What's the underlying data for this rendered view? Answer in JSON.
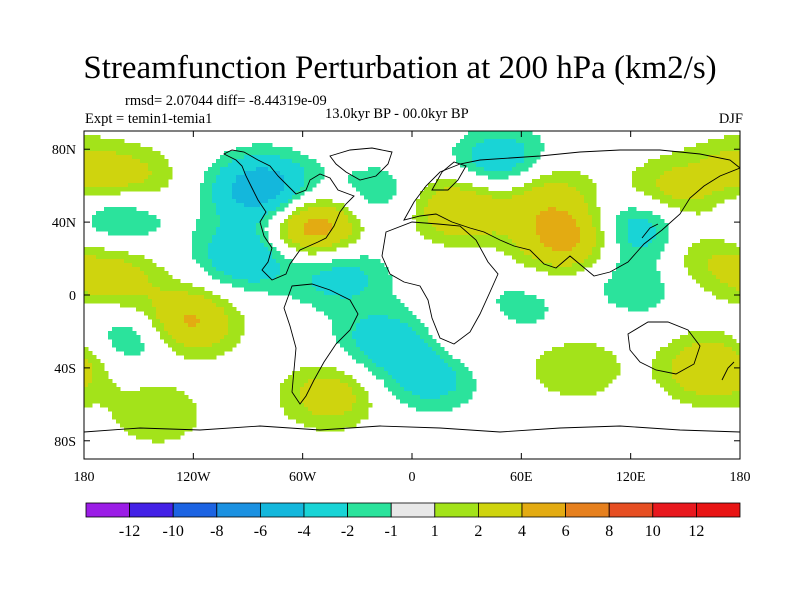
{
  "chart_data": {
    "type": "heatmap",
    "title": "Streamfunction Perturbation at 200 hPa (km2/s)",
    "stats_text": "rmsd= 2.07044 diff= -8.44319e-09",
    "left_label": "Expt = temin1-temia1",
    "center_label": "13.0kyr BP - 00.0kyr BP",
    "right_label": "DJF",
    "xticks": [
      "180",
      "120W",
      "60W",
      "0",
      "60E",
      "120E",
      "180"
    ],
    "yticks": [
      "80N",
      "40N",
      "0",
      "40S",
      "80S"
    ],
    "lon_range": [
      -180,
      180
    ],
    "lat_range": [
      -90,
      90
    ],
    "colorbar": {
      "labels": [
        "-12",
        "-10",
        "-8",
        "-6",
        "-4",
        "-2",
        "-1",
        "1",
        "2",
        "4",
        "6",
        "8",
        "10",
        "12"
      ],
      "colors": [
        "#9b1de6",
        "#4321e6",
        "#1c63e2",
        "#1b91e1",
        "#14b7dc",
        "#19d4d6",
        "#2be39c",
        "#e8e8e8",
        "#a3e31a",
        "#cfd40e",
        "#e3ab12",
        "#e6801e",
        "#e64e22",
        "#e8181e"
      ]
    },
    "anomaly_centers": [
      {
        "lon": -155,
        "lat": 62,
        "value": 3
      },
      {
        "lon": -160,
        "lat": 45,
        "value": -3
      },
      {
        "lon": -165,
        "lat": 10,
        "value": 3
      },
      {
        "lon": -150,
        "lat": -22,
        "value": -3
      },
      {
        "lon": -140,
        "lat": -65,
        "value": 2
      },
      {
        "lon": -125,
        "lat": -15,
        "value": 5
      },
      {
        "lon": -90,
        "lat": 22,
        "value": -4
      },
      {
        "lon": -82,
        "lat": 58,
        "value": -6
      },
      {
        "lon": -55,
        "lat": 37,
        "value": 6
      },
      {
        "lon": -40,
        "lat": 12,
        "value": -3
      },
      {
        "lon": -45,
        "lat": -55,
        "value": 3
      },
      {
        "lon": -20,
        "lat": 55,
        "value": -2
      },
      {
        "lon": -15,
        "lat": -25,
        "value": -3
      },
      {
        "lon": 10,
        "lat": -45,
        "value": -3
      },
      {
        "lon": 25,
        "lat": 48,
        "value": 4
      },
      {
        "lon": 35,
        "lat": -22,
        "value": 2
      },
      {
        "lon": 50,
        "lat": 72,
        "value": -4
      },
      {
        "lon": 55,
        "lat": -10,
        "value": -2
      },
      {
        "lon": 85,
        "lat": 32,
        "value": 5
      },
      {
        "lon": 70,
        "lat": 58,
        "value": 3
      },
      {
        "lon": 125,
        "lat": 38,
        "value": -4
      },
      {
        "lon": 140,
        "lat": 55,
        "value": 3
      },
      {
        "lon": 125,
        "lat": 6,
        "value": -2
      },
      {
        "lon": 155,
        "lat": 20,
        "value": 2
      },
      {
        "lon": 165,
        "lat": -40,
        "value": 4
      },
      {
        "lon": 90,
        "lat": -40,
        "value": 2
      },
      {
        "lon": 175,
        "lat": 70,
        "value": 2
      }
    ]
  }
}
